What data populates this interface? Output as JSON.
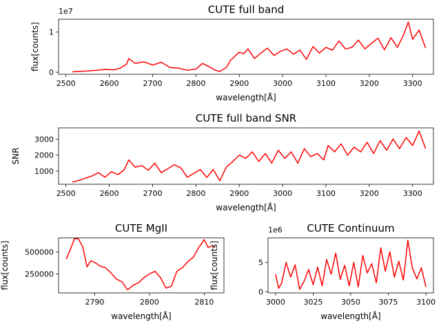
{
  "chart_data": [
    {
      "type": "line",
      "title": "CUTE full band",
      "xlabel": "wavelength[Å]",
      "ylabel": "flux[counts]",
      "y_offset_text": "1e7",
      "xlim": [
        2483,
        3348
      ],
      "ylim": [
        -0.05,
        1.32
      ],
      "xticks": [
        2500,
        2600,
        2700,
        2800,
        2900,
        3000,
        3100,
        3200,
        3300
      ],
      "yticks": [
        0,
        1
      ],
      "color": "#ff0000",
      "series": [
        {
          "x": [
            2515,
            2530,
            2550,
            2570,
            2590,
            2610,
            2625,
            2640,
            2645,
            2660,
            2680,
            2700,
            2720,
            2740,
            2760,
            2780,
            2800,
            2815,
            2830,
            2845,
            2855,
            2870,
            2880,
            2890,
            2900,
            2910,
            2920,
            2935,
            2950,
            2965,
            2980,
            2995,
            3010,
            3025,
            3040,
            3055,
            3070,
            3085,
            3100,
            3115,
            3130,
            3145,
            3160,
            3175,
            3190,
            3205,
            3220,
            3235,
            3250,
            3265,
            3280,
            3290,
            3300,
            3315,
            3330
          ],
          "values": [
            0.01,
            0.02,
            0.03,
            0.05,
            0.07,
            0.06,
            0.1,
            0.2,
            0.34,
            0.22,
            0.26,
            0.18,
            0.25,
            0.12,
            0.1,
            0.05,
            0.08,
            0.22,
            0.14,
            0.05,
            0.02,
            0.12,
            0.3,
            0.4,
            0.5,
            0.46,
            0.58,
            0.34,
            0.48,
            0.6,
            0.42,
            0.52,
            0.58,
            0.45,
            0.55,
            0.32,
            0.64,
            0.48,
            0.62,
            0.55,
            0.78,
            0.58,
            0.62,
            0.8,
            0.58,
            0.72,
            0.85,
            0.56,
            0.86,
            0.62,
            0.95,
            1.25,
            0.82,
            1.05,
            0.6
          ]
        }
      ]
    },
    {
      "type": "line",
      "title": "CUTE full band SNR",
      "xlabel": "wavelength[Å]",
      "ylabel": "SNR",
      "xlim": [
        2483,
        3348
      ],
      "ylim": [
        180,
        3700
      ],
      "xticks": [
        2500,
        2600,
        2700,
        2800,
        2900,
        3000,
        3100,
        3200,
        3300
      ],
      "yticks": [
        1000,
        2000,
        3000
      ],
      "color": "#ff0000",
      "series": [
        {
          "x": [
            2515,
            2530,
            2545,
            2560,
            2575,
            2590,
            2605,
            2620,
            2635,
            2645,
            2660,
            2675,
            2690,
            2705,
            2720,
            2735,
            2750,
            2765,
            2780,
            2795,
            2810,
            2825,
            2840,
            2855,
            2870,
            2885,
            2900,
            2915,
            2930,
            2945,
            2960,
            2975,
            2990,
            3005,
            3020,
            3035,
            3050,
            3065,
            3080,
            3095,
            3105,
            3120,
            3135,
            3150,
            3165,
            3180,
            3195,
            3210,
            3225,
            3240,
            3255,
            3270,
            3285,
            3300,
            3315,
            3330
          ],
          "values": [
            320,
            420,
            560,
            700,
            900,
            620,
            960,
            780,
            1100,
            1700,
            1250,
            1350,
            1050,
            1500,
            900,
            1150,
            1400,
            1200,
            620,
            860,
            1100,
            600,
            1100,
            400,
            1250,
            1600,
            2000,
            1800,
            2200,
            1600,
            2100,
            1500,
            2300,
            1800,
            2200,
            1500,
            2400,
            1900,
            2100,
            1700,
            2600,
            2200,
            2700,
            2000,
            2500,
            2200,
            2800,
            2100,
            2900,
            2300,
            3000,
            2400,
            3100,
            2600,
            3500,
            2400
          ]
        }
      ]
    },
    {
      "type": "line",
      "title": "CUTE MgII",
      "xlabel": "wavelength[Å]",
      "ylabel": "flux[counts]",
      "xlim": [
        2783.4,
        2813.6
      ],
      "ylim": [
        35000,
        660000
      ],
      "xticks": [
        2790,
        2800,
        2810
      ],
      "yticks": [
        250000,
        500000
      ],
      "color": "#ff0000",
      "series": [
        {
          "x": [
            2784.8,
            2785.5,
            2786.3,
            2787.0,
            2787.8,
            2788.6,
            2789.3,
            2790.0,
            2791.0,
            2792.0,
            2793.0,
            2794.0,
            2795.0,
            2796.0,
            2797.0,
            2798.0,
            2799.0,
            2800.0,
            2801.0,
            2802.0,
            2803.0,
            2804.0,
            2805.0,
            2806.0,
            2807.0,
            2808.0,
            2809.0,
            2810.0,
            2810.7,
            2811.4,
            2812.0
          ],
          "values": [
            420000,
            520000,
            650000,
            650000,
            560000,
            330000,
            400000,
            380000,
            340000,
            320000,
            260000,
            190000,
            160000,
            70000,
            120000,
            150000,
            210000,
            250000,
            280000,
            210000,
            90000,
            110000,
            280000,
            320000,
            390000,
            440000,
            550000,
            640000,
            550000,
            570000,
            560000
          ]
        }
      ]
    },
    {
      "type": "line",
      "title": "CUTE Continuum",
      "xlabel": "wavelength[Å]",
      "ylabel": "flux[counts]",
      "y_offset_text": "1e6",
      "xlim": [
        2995,
        3105
      ],
      "ylim": [
        -0.2,
        9.2
      ],
      "xticks": [
        3000,
        3025,
        3050,
        3075,
        3100
      ],
      "yticks": [
        0,
        5
      ],
      "color": "#ff0000",
      "series": [
        {
          "x": [
            3000,
            3002,
            3004,
            3007,
            3010,
            3013,
            3016,
            3019,
            3022,
            3025,
            3028,
            3031,
            3034,
            3037,
            3040,
            3043,
            3046,
            3049,
            3052,
            3055,
            3058,
            3061,
            3064,
            3067,
            3070,
            3073,
            3076,
            3079,
            3082,
            3085,
            3088,
            3091,
            3094,
            3097,
            3100
          ],
          "values": [
            3.0,
            0.6,
            1.4,
            5.0,
            2.5,
            4.6,
            0.4,
            1.8,
            3.8,
            1.2,
            4.2,
            1.0,
            5.5,
            3.0,
            6.6,
            2.1,
            4.5,
            1.0,
            5.0,
            0.8,
            6.2,
            3.2,
            4.8,
            1.5,
            7.5,
            3.5,
            6.8,
            2.5,
            5.2,
            2.0,
            8.8,
            4.0,
            2.2,
            4.1,
            0.8
          ]
        }
      ]
    }
  ]
}
